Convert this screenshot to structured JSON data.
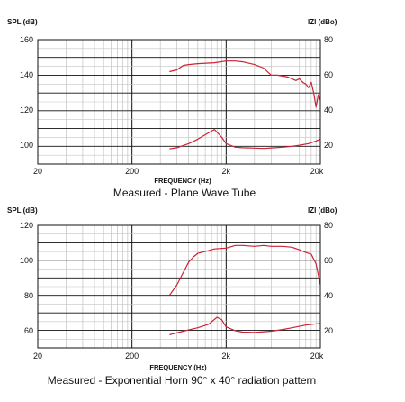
{
  "chart_data": [
    {
      "type": "line",
      "title": "Measured - Plane Wave Tube",
      "xlabel": "FREQUENCY (Hz)",
      "ylabel": "SPL (dB)",
      "y2label": "IZI (dBo)",
      "xscale": "log",
      "xlim": [
        20,
        20000
      ],
      "x_ticks": [
        20,
        200,
        2000,
        20000
      ],
      "x_ticklabels": [
        "20",
        "200",
        "2k",
        "20k"
      ],
      "ylim": [
        90,
        160
      ],
      "y_ticks": [
        100,
        120,
        140,
        160
      ],
      "y2lim": [
        10,
        80
      ],
      "y2_ticks": [
        20,
        40,
        60,
        80
      ],
      "grid": true,
      "series": [
        {
          "axis": "left",
          "color": "#cc2236",
          "x": [
            500,
            600,
            700,
            800,
            1000,
            1500,
            2000,
            2500,
            3000,
            4000,
            5000,
            6000,
            7000,
            8000,
            9000,
            10000,
            11000,
            12000,
            13000,
            14000,
            15000,
            16000,
            17000,
            18000,
            19000,
            20000
          ],
          "y": [
            142,
            143,
            145.5,
            146,
            146.5,
            147,
            148,
            148,
            147.5,
            146,
            144,
            140,
            140,
            139.5,
            139,
            138,
            137,
            138,
            136,
            135,
            133,
            136,
            130,
            122,
            129,
            126
          ]
        },
        {
          "axis": "right",
          "color": "#cc2236",
          "x": [
            500,
            600,
            800,
            1000,
            1200,
            1500,
            1800,
            2000,
            2500,
            3000,
            4000,
            5000,
            6000,
            8000,
            10000,
            12000,
            15000,
            18000,
            20000
          ],
          "y": [
            18.5,
            19.2,
            21.5,
            24,
            26.5,
            29.5,
            25,
            21.5,
            19.5,
            19.2,
            19,
            18.8,
            19.1,
            19.5,
            20,
            20.6,
            21.5,
            23,
            24
          ]
        }
      ]
    },
    {
      "type": "line",
      "title": "Measured - Exponential Horn 90° x 40° radiation pattern",
      "xlabel": "FREQUENCY (Hz)",
      "ylabel": "SPL (dB)",
      "y2label": "IZI (dBo)",
      "xscale": "log",
      "xlim": [
        20,
        20000
      ],
      "x_ticks": [
        20,
        200,
        2000,
        20000
      ],
      "x_ticklabels": [
        "20",
        "200",
        "2k",
        "20k"
      ],
      "ylim": [
        50,
        120
      ],
      "y_ticks": [
        60,
        80,
        100,
        120
      ],
      "y2lim": [
        10,
        80
      ],
      "y2_ticks": [
        20,
        40,
        60,
        80
      ],
      "grid": true,
      "series": [
        {
          "axis": "left",
          "color": "#cc2236",
          "x": [
            500,
            600,
            700,
            800,
            900,
            1000,
            1200,
            1500,
            2000,
            2500,
            3000,
            4000,
            5000,
            6000,
            8000,
            10000,
            12000,
            14000,
            16000,
            18000,
            20000
          ],
          "y": [
            80,
            86,
            93,
            99,
            102,
            104,
            105,
            106.5,
            107,
            108.5,
            108.5,
            108,
            108.5,
            108,
            108,
            107.5,
            106,
            104.5,
            103.5,
            98,
            86
          ]
        },
        {
          "axis": "right",
          "color": "#cc2236",
          "x": [
            500,
            700,
            1000,
            1300,
            1600,
            1800,
            2000,
            2500,
            3000,
            4000,
            6000,
            8000,
            10000,
            14000,
            20000
          ],
          "y": [
            17.5,
            19.5,
            21.5,
            23.5,
            27.5,
            26,
            22,
            19.8,
            19,
            18.8,
            19.5,
            20.5,
            21.5,
            23,
            24
          ]
        }
      ]
    }
  ]
}
